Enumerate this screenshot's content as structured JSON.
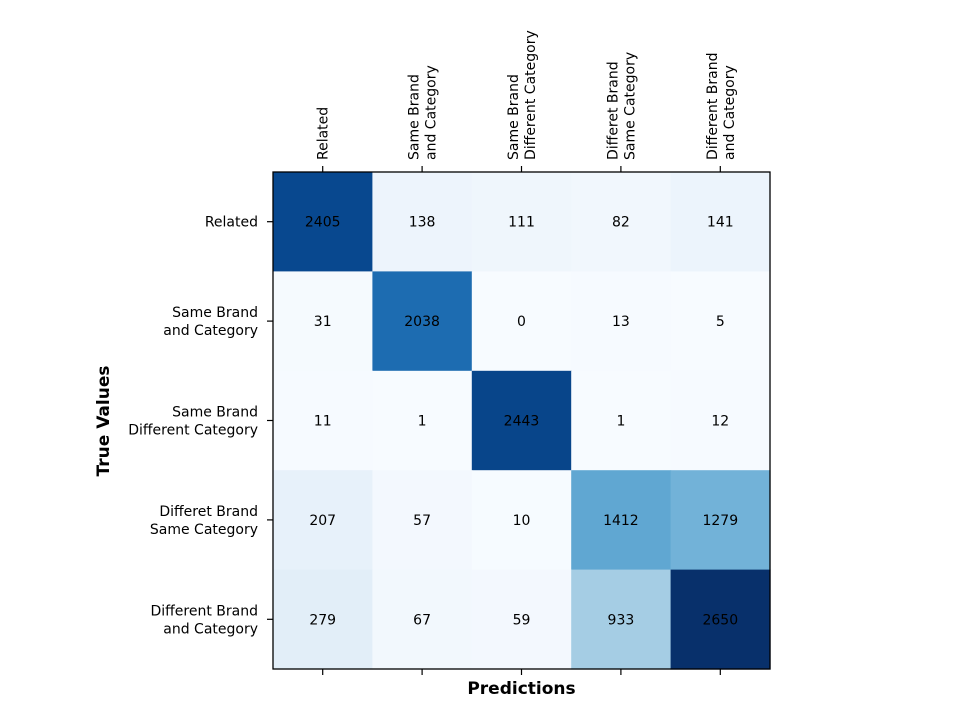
{
  "chart_data": {
    "type": "heatmap",
    "xlabel": "Predictions",
    "ylabel": "True Values",
    "x_categories": [
      [
        "Related"
      ],
      [
        "Same Brand",
        "and Category"
      ],
      [
        "Same Brand",
        "Different Category"
      ],
      [
        "Differet Brand",
        "Same Category"
      ],
      [
        "Different Brand",
        "and Category"
      ]
    ],
    "y_categories": [
      [
        "Related"
      ],
      [
        "Same Brand",
        "and Category"
      ],
      [
        "Same Brand",
        "Different Category"
      ],
      [
        "Differet Brand",
        "Same Category"
      ],
      [
        "Different Brand",
        "and Category"
      ]
    ],
    "values": [
      [
        2405,
        138,
        111,
        82,
        141
      ],
      [
        31,
        2038,
        0,
        13,
        5
      ],
      [
        11,
        1,
        2443,
        1,
        12
      ],
      [
        207,
        57,
        10,
        1412,
        1279
      ],
      [
        279,
        67,
        59,
        933,
        2650
      ]
    ],
    "colormap": "Blues",
    "colorscale_range": [
      0,
      2650
    ],
    "x_tick_position": "top-and-bottom",
    "x_label_position": "top",
    "grid": false
  }
}
